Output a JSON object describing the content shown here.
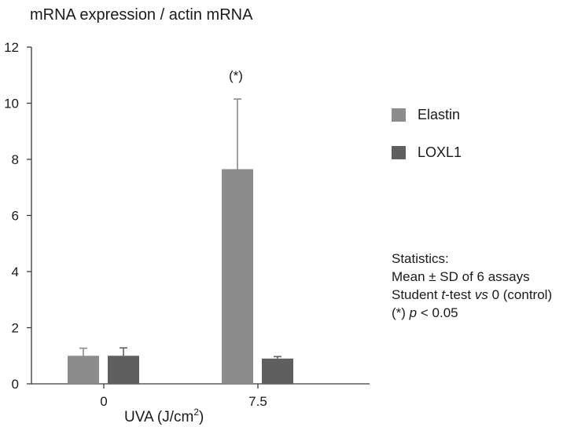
{
  "chart_data": {
    "type": "bar",
    "ylabel": "mRNA expression / actin mRNA",
    "xlabel": "UVA (J/cm",
    "xlabel_sup": "2",
    "xlabel_close": ")",
    "categories": [
      "0",
      "7.5"
    ],
    "yticks": [
      "0",
      "2",
      "4",
      "6",
      "8",
      "10",
      "12"
    ],
    "ylim": [
      0,
      12
    ],
    "grid": false,
    "legend_position": "right",
    "series": [
      {
        "name": "Elastin",
        "color": "#8c8c8c",
        "values": [
          1.0,
          7.65
        ],
        "errors": [
          0.27,
          2.5
        ]
      },
      {
        "name": "LOXL1",
        "color": "#5f5f5f",
        "values": [
          1.0,
          0.9
        ],
        "errors": [
          0.28,
          0.07
        ]
      }
    ],
    "annotations": [
      {
        "text": "(*)",
        "category": "7.5",
        "series": "Elastin"
      }
    ]
  },
  "stats": {
    "title": "Statistics:",
    "line1": "Mean ± SD of 6 assays",
    "line2_a": "Student ",
    "line2_t": "t",
    "line2_b": "-test ",
    "line2_vs": "vs",
    "line2_c": " 0 (control)",
    "line3_a": "(*) ",
    "line3_p": "p",
    "line3_b": " < 0.05"
  }
}
